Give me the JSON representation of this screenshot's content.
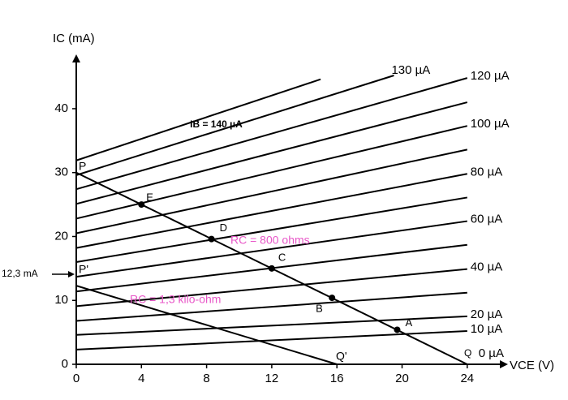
{
  "chart_data": {
    "type": "line",
    "x_label": "VCE (V)",
    "y_label": "IC (mA)",
    "xlim": [
      0,
      26.5
    ],
    "ylim": [
      0,
      48.5
    ],
    "xticks": [
      0,
      4,
      8,
      12,
      16,
      20,
      24
    ],
    "yticks": [
      0,
      10,
      20,
      30,
      40
    ],
    "color": "#000000",
    "series": [
      {
        "name": "0 µA",
        "x": [
          0,
          24
        ],
        "values": [
          0,
          0
        ]
      },
      {
        "name": "10 µA",
        "x": [
          0,
          24
        ],
        "values": [
          2.3,
          5.2
        ]
      },
      {
        "name": "20 µA",
        "x": [
          0,
          24
        ],
        "values": [
          4.6,
          7.5
        ]
      },
      {
        "x": [
          0,
          24
        ],
        "values": [
          6.8,
          11.2
        ]
      },
      {
        "name": "40 µA",
        "x": [
          0,
          24
        ],
        "values": [
          9.1,
          14.9
        ]
      },
      {
        "x": [
          0,
          24
        ],
        "values": [
          11.4,
          18.7
        ]
      },
      {
        "name": "60 µA",
        "x": [
          0,
          24
        ],
        "values": [
          13.7,
          22.4
        ]
      },
      {
        "x": [
          0,
          24
        ],
        "values": [
          16.0,
          26.1
        ]
      },
      {
        "name": "80 µA",
        "x": [
          0,
          24
        ],
        "values": [
          18.2,
          29.8
        ]
      },
      {
        "x": [
          0,
          24
        ],
        "values": [
          20.5,
          33.6
        ]
      },
      {
        "name": "100 µA",
        "x": [
          0,
          24
        ],
        "values": [
          22.8,
          37.3
        ]
      },
      {
        "x": [
          0,
          24
        ],
        "values": [
          25.1,
          41.0
        ]
      },
      {
        "name": "120 µA",
        "x": [
          0,
          24
        ],
        "values": [
          27.4,
          44.8
        ]
      },
      {
        "name": "130 µA",
        "x": [
          0,
          19.5
        ],
        "values": [
          29.6,
          45.2
        ]
      },
      {
        "name": "IB = 140 µA",
        "x": [
          0,
          15
        ],
        "values": [
          31.9,
          44.6
        ]
      }
    ],
    "load_lines": [
      {
        "name": "RC = 800 ohms",
        "color": "#e858c8",
        "x": [
          0,
          24
        ],
        "values": [
          30,
          0
        ]
      },
      {
        "name": "RC = 1,3 kilo-ohm",
        "color": "#e858c8",
        "x": [
          0,
          16
        ],
        "values": [
          12.3,
          0
        ]
      }
    ],
    "points": {
      "labels": [
        "A",
        "B",
        "C",
        "D",
        "E"
      ],
      "x": [
        19.7,
        15.7,
        12,
        8.3,
        4
      ],
      "values": [
        5.4,
        10.4,
        15,
        19.6,
        25
      ]
    },
    "annotations": {
      "P": "P",
      "P_prime": "P'",
      "Q": "Q",
      "Q_prime": "Q'",
      "ic_label": "12,3 mA"
    }
  }
}
